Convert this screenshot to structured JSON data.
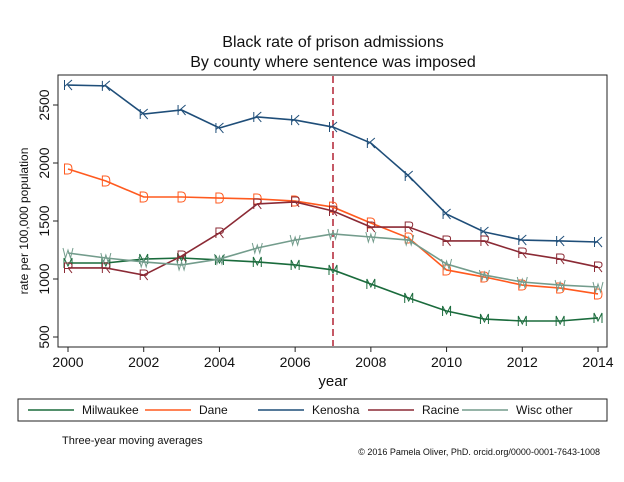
{
  "chart_data": {
    "type": "line",
    "title": "Black rate of prison admissions",
    "subtitle": "By county where sentence was imposed",
    "xlabel": "year",
    "ylabel": "rate per 100,000 population",
    "xlim": [
      2000,
      2014
    ],
    "ylim": [
      500,
      2700
    ],
    "xticks": [
      2000,
      2002,
      2004,
      2006,
      2008,
      2010,
      2012,
      2014
    ],
    "yticks": [
      500,
      1000,
      1500,
      2000,
      2500
    ],
    "grid": false,
    "legend_position": "bottom",
    "reference_line": {
      "x": 2007,
      "style": "dashed",
      "color": "#b22234"
    },
    "x": [
      2000,
      2001,
      2002,
      2003,
      2004,
      2005,
      2006,
      2007,
      2008,
      2009,
      2010,
      2011,
      2012,
      2013,
      2014
    ],
    "series": [
      {
        "name": "Milwaukee",
        "marker": "M",
        "color": "#1a6b3c",
        "values": [
          1138,
          1138,
          1172,
          1181,
          1164,
          1147,
          1121,
          1078,
          957,
          836,
          724,
          655,
          638,
          638,
          664
        ]
      },
      {
        "name": "Dane",
        "marker": "D",
        "color": "#ff5a1f",
        "values": [
          1948,
          1845,
          1707,
          1707,
          1698,
          1690,
          1672,
          1620,
          1483,
          1353,
          1078,
          1017,
          948,
          922,
          871
        ]
      },
      {
        "name": "Kenosha",
        "marker": "K",
        "color": "#1f4e79",
        "values": [
          2672,
          2665,
          2422,
          2457,
          2302,
          2397,
          2370,
          2310,
          2172,
          1888,
          1560,
          1405,
          1336,
          1328,
          1319
        ]
      },
      {
        "name": "Racine",
        "marker": "R",
        "color": "#8b2a35",
        "values": [
          1095,
          1095,
          1034,
          1198,
          1397,
          1647,
          1664,
          1586,
          1448,
          1448,
          1328,
          1328,
          1224,
          1172,
          1103
        ]
      },
      {
        "name": "Wisc other",
        "marker": "W",
        "color": "#739c8c",
        "values": [
          1224,
          1181,
          1147,
          1121,
          1172,
          1267,
          1336,
          1388,
          1362,
          1336,
          1129,
          1034,
          974,
          948,
          931
        ]
      }
    ],
    "note": "Three-year moving averages",
    "credit": "© 2016 Pamela Oliver, PhD.  orcid.org/0000-0001-7643-1008"
  }
}
